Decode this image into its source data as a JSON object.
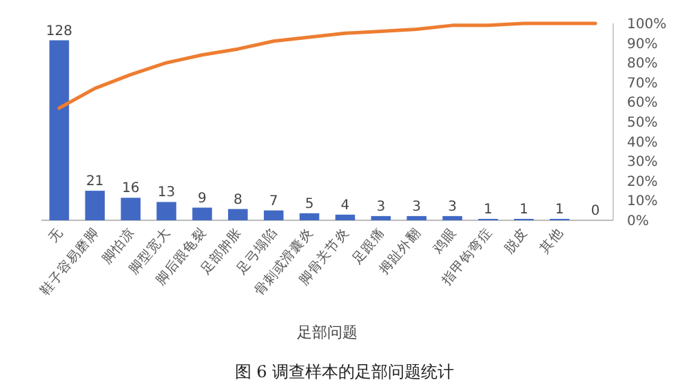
{
  "chart_data": {
    "type": "bar",
    "title": "图 6 调查样本的足部问题统计",
    "xlabel": "足部问题",
    "categories": [
      "无",
      "鞋子容易磨脚",
      "脚怕凉",
      "脚型宽大",
      "脚后跟龟裂",
      "足部肿胀",
      "足弓塌陷",
      "骨刺或滑囊炎",
      "脚骨关节炎",
      "足跟痛",
      "拇趾外翻",
      "鸡眼",
      "指甲钩弯症",
      "脱皮",
      "其他",
      null
    ],
    "series": [
      {
        "color": "#4169c4",
        "values": [
          128,
          21,
          16,
          13,
          9,
          8,
          7,
          5,
          4,
          3,
          3,
          3,
          1,
          1,
          1,
          0
        ],
        "value_labels": [
          "128",
          "21",
          "16",
          "13",
          "9",
          "8",
          "7",
          "5",
          "4",
          "3",
          "3",
          "3",
          "1",
          "1",
          "1",
          "0"
        ]
      },
      {
        "type": "line",
        "axis": "y2",
        "color": "#ed7d31",
        "values": [
          57,
          67,
          74,
          80,
          84,
          87,
          91,
          93,
          95,
          96,
          97,
          99,
          99,
          100,
          100,
          100
        ]
      }
    ],
    "ylim": [
      0,
      140
    ],
    "y2lim": [
      0,
      100
    ],
    "y2ticks": [
      {
        "value": 0,
        "label": "0%"
      },
      {
        "value": 10,
        "label": "10%"
      },
      {
        "value": 20,
        "label": "20%"
      },
      {
        "value": 30,
        "label": "30%"
      },
      {
        "value": 40,
        "label": "40%"
      },
      {
        "value": 50,
        "label": "50%"
      },
      {
        "value": 60,
        "label": "60%"
      },
      {
        "value": 70,
        "label": "70%"
      },
      {
        "value": 80,
        "label": "80%"
      },
      {
        "value": 90,
        "label": "90%"
      },
      {
        "value": 100,
        "label": "100%"
      }
    ],
    "tick_labels": [
      "x",
      "y2"
    ]
  }
}
